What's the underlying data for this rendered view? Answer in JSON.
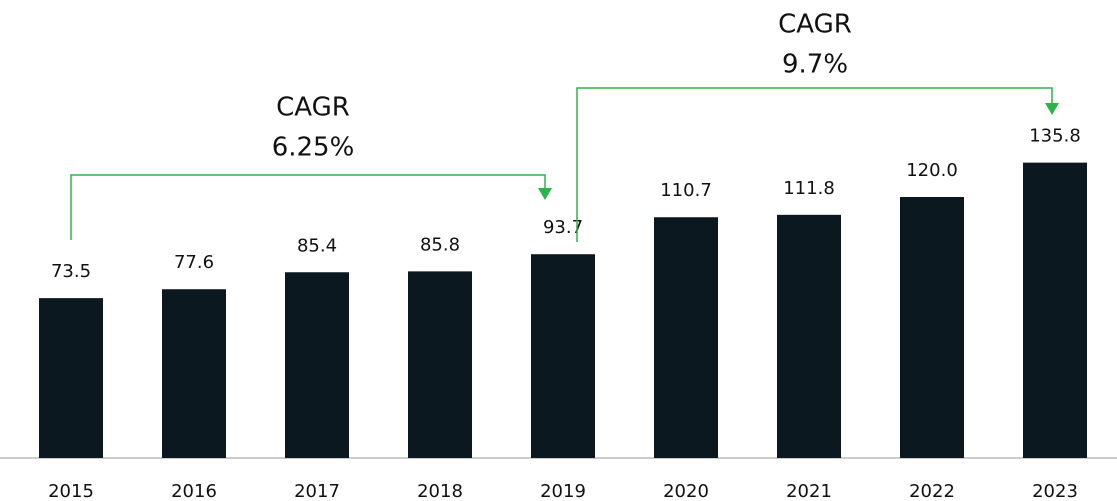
{
  "chart_data": {
    "type": "bar",
    "categories": [
      "2015",
      "2016",
      "2017",
      "2018",
      "2019",
      "2020",
      "2021",
      "2022",
      "2023"
    ],
    "values": [
      73.5,
      77.6,
      85.4,
      85.8,
      93.7,
      110.7,
      111.8,
      120.0,
      135.8
    ],
    "value_labels": [
      "73.5",
      "77.6",
      "85.4",
      "85.8",
      "93.7",
      "110.7",
      "111.8",
      "120.0",
      "135.8"
    ],
    "color": "#0b1820",
    "annotations": [
      {
        "lines": [
          "CAGR",
          "6.25%"
        ],
        "color": "#2db34a"
      },
      {
        "lines": [
          "CAGR",
          "9.7%"
        ],
        "color": "#2db34a"
      }
    ]
  }
}
